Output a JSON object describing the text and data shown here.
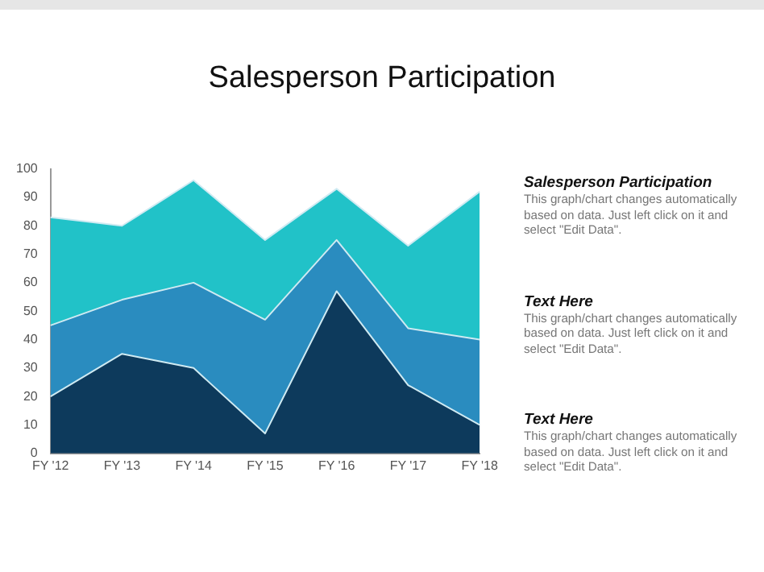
{
  "chart_data": {
    "type": "area",
    "title": "Salesperson Participation",
    "stacked": true,
    "categories": [
      "FY '12",
      "FY '13",
      "FY '14",
      "FY '15",
      "FY '16",
      "FY '17",
      "FY '18"
    ],
    "series": [
      {
        "color": "#0d3a5c",
        "values": [
          20,
          35,
          30,
          7,
          57,
          24,
          10
        ]
      },
      {
        "color": "#2a8cbf",
        "values": [
          25,
          19,
          30,
          40,
          18,
          20,
          30
        ]
      },
      {
        "color": "#21c2c8",
        "values": [
          38,
          26,
          36,
          28,
          18,
          29,
          52
        ]
      }
    ],
    "ylim": [
      0,
      100
    ],
    "yticks": [
      0,
      10,
      20,
      30,
      40,
      50,
      60,
      70,
      80,
      90,
      100
    ],
    "grid": false,
    "legend": false,
    "annotations": [
      "Salesperson Participation",
      "This graph/chart changes automatically based on data. Just left click on it and select \"Edit Data\".",
      "Text Here",
      "This graph/chart changes automatically based on data. Just left click on it and select \"Edit Data\".",
      "Text Here",
      "This graph/chart changes automatically based on data. Just left click on it and select \"Edit Data\"."
    ]
  }
}
